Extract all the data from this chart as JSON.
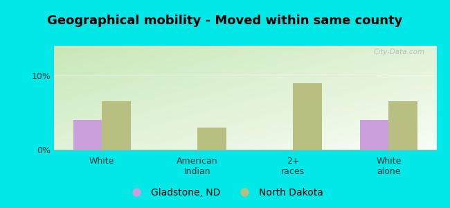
{
  "title": "Geographical mobility - Moved within same county",
  "categories": [
    "White",
    "American\nIndian",
    "2+\nraces",
    "White\nalone"
  ],
  "gladstone_values": [
    4.0,
    0,
    0,
    4.0
  ],
  "nd_values": [
    6.5,
    3.0,
    9.0,
    6.5
  ],
  "gladstone_color": "#c9a0dc",
  "nd_color": "#b8bf80",
  "bg_color": "#00e8e8",
  "gradient_top_left": "#c8e8b8",
  "gradient_bottom_right": "#f8fdf5",
  "ylim": [
    0,
    14
  ],
  "yticks": [
    0,
    10
  ],
  "ytick_labels": [
    "0%",
    "10%"
  ],
  "bar_width": 0.3,
  "title_fontsize": 13,
  "tick_fontsize": 9,
  "legend_fontsize": 10,
  "watermark_text": "City-Data.com"
}
